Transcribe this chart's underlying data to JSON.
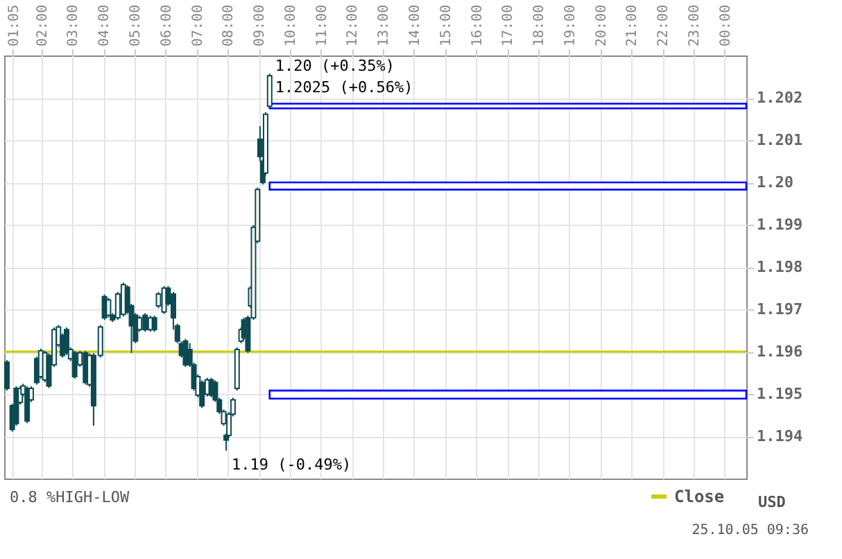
{
  "chart_data": {
    "type": "candlestick",
    "color": "#0d4a52",
    "ylabel": "USD",
    "xlim": [
      0.8,
      24.7
    ],
    "ylim": [
      1.193,
      1.203
    ],
    "xticks": [
      {
        "value": 1.0833,
        "label": "01:05"
      },
      {
        "value": 2,
        "label": "02:00"
      },
      {
        "value": 3,
        "label": "03:00"
      },
      {
        "value": 4,
        "label": "04:00"
      },
      {
        "value": 5,
        "label": "05:00"
      },
      {
        "value": 6,
        "label": "06:00"
      },
      {
        "value": 7,
        "label": "07:00"
      },
      {
        "value": 8,
        "label": "08:00"
      },
      {
        "value": 9,
        "label": "09:00"
      },
      {
        "value": 10,
        "label": "10:00"
      },
      {
        "value": 11,
        "label": "11:00"
      },
      {
        "value": 12,
        "label": "12:00"
      },
      {
        "value": 13,
        "label": "13:00"
      },
      {
        "value": 14,
        "label": "14:00"
      },
      {
        "value": 15,
        "label": "15:00"
      },
      {
        "value": 16,
        "label": "16:00"
      },
      {
        "value": 17,
        "label": "17:00"
      },
      {
        "value": 18,
        "label": "18:00"
      },
      {
        "value": 19,
        "label": "19:00"
      },
      {
        "value": 20,
        "label": "20:00"
      },
      {
        "value": 21,
        "label": "21:00"
      },
      {
        "value": 22,
        "label": "22:00"
      },
      {
        "value": 23,
        "label": "23:00"
      },
      {
        "value": 24,
        "label": "00:00"
      }
    ],
    "yticks": [
      1.194,
      1.195,
      1.196,
      1.197,
      1.198,
      1.199,
      {
        "value": 1.2,
        "label": "1.20"
      },
      1.201,
      1.202
    ],
    "grid": true,
    "legend": "bottom right",
    "x": [
      0.89,
      1.06,
      1.19,
      1.32,
      1.41,
      1.54,
      1.67,
      1.85,
      1.98,
      2.11,
      2.24,
      2.41,
      2.55,
      2.68,
      2.81,
      2.94,
      3.07,
      3.24,
      3.42,
      3.55,
      3.68,
      3.9,
      4.03,
      4.16,
      4.29,
      4.46,
      4.64,
      4.77,
      4.9,
      5.03,
      5.16,
      5.34,
      5.51,
      5.64,
      5.77,
      5.95,
      6.08,
      6.25,
      6.38,
      6.51,
      6.64,
      6.78,
      6.91,
      7.04,
      7.17,
      7.34,
      7.47,
      7.6,
      7.73,
      7.87,
      7.95,
      8.04,
      8.17,
      8.3,
      8.43,
      8.52,
      8.65,
      8.74,
      8.83,
      8.96,
      9.04,
      9.13,
      9.22,
      9.35
    ],
    "ohlc": [
      [
        1.19575,
        1.1958,
        1.19508,
        1.19513
      ],
      [
        1.19472,
        1.19477,
        1.19411,
        1.19416
      ],
      [
        1.19513,
        1.19518,
        1.19425,
        1.1943
      ],
      [
        1.1948,
        1.19518,
        1.19475,
        1.19513
      ],
      [
        1.19499,
        1.19524,
        1.19494,
        1.19519
      ],
      [
        1.19513,
        1.19518,
        1.19431,
        1.19436
      ],
      [
        1.19486,
        1.19518,
        1.19481,
        1.19513
      ],
      [
        1.19583,
        1.19588,
        1.19522,
        1.19527
      ],
      [
        1.19541,
        1.19607,
        1.19536,
        1.19602
      ],
      [
        1.19533,
        1.19602,
        1.19528,
        1.19597
      ],
      [
        1.19591,
        1.19596,
        1.19514,
        1.19519
      ],
      [
        1.19569,
        1.19657,
        1.19564,
        1.19652
      ],
      [
        1.19616,
        1.19663,
        1.19611,
        1.19658
      ],
      [
        1.19638,
        1.19643,
        1.19586,
        1.19591
      ],
      [
        1.19652,
        1.19657,
        1.19592,
        1.19597
      ],
      [
        1.19583,
        1.1961,
        1.19578,
        1.19605
      ],
      [
        1.19597,
        1.19602,
        1.19536,
        1.19541
      ],
      [
        1.19569,
        1.19602,
        1.19564,
        1.19597
      ],
      [
        1.19597,
        1.19602,
        1.19522,
        1.19527
      ],
      [
        1.19522,
        1.19596,
        1.19517,
        1.19591
      ],
      [
        1.19591,
        1.19596,
        1.19425,
        1.19472
      ],
      [
        1.19591,
        1.19663,
        1.19586,
        1.19658
      ],
      [
        1.1973,
        1.19735,
        1.19675,
        1.1968
      ],
      [
        1.19686,
        1.19727,
        1.19681,
        1.19722
      ],
      [
        1.19686,
        1.19691,
        1.1967,
        1.19675
      ],
      [
        1.1968,
        1.19741,
        1.19675,
        1.19736
      ],
      [
        1.19688,
        1.19763,
        1.19683,
        1.19758
      ],
      [
        1.19752,
        1.19757,
        1.19689,
        1.19694
      ],
      [
        1.19708,
        1.19713,
        1.19597,
        1.19661
      ],
      [
        1.19686,
        1.19691,
        1.1962,
        1.19625
      ],
      [
        1.19652,
        1.19685,
        1.19647,
        1.1968
      ],
      [
        1.19686,
        1.19691,
        1.19647,
        1.19652
      ],
      [
        1.19652,
        1.19685,
        1.19647,
        1.1968
      ],
      [
        1.1968,
        1.19685,
        1.19647,
        1.19652
      ],
      [
        1.19708,
        1.19741,
        1.19703,
        1.19736
      ],
      [
        1.19694,
        1.19755,
        1.19689,
        1.1975
      ],
      [
        1.1975,
        1.19755,
        1.19708,
        1.19713
      ],
      [
        1.19736,
        1.19741,
        1.19652,
        1.1968
      ],
      [
        1.19661,
        1.19666,
        1.1962,
        1.19625
      ],
      [
        1.19619,
        1.19624,
        1.19586,
        1.19591
      ],
      [
        1.19625,
        1.1963,
        1.19564,
        1.19569
      ],
      [
        1.19605,
        1.1962,
        1.19564,
        1.19569
      ],
      [
        1.19569,
        1.19574,
        1.19508,
        1.19513
      ],
      [
        1.19497,
        1.19546,
        1.19492,
        1.19541
      ],
      [
        1.19527,
        1.19532,
        1.19467,
        1.19472
      ],
      [
        1.19499,
        1.19538,
        1.19494,
        1.19533
      ],
      [
        1.19533,
        1.19538,
        1.19492,
        1.19497
      ],
      [
        1.19527,
        1.19532,
        1.19481,
        1.19486
      ],
      [
        1.19486,
        1.19491,
        1.19453,
        1.19458
      ],
      [
        1.1943,
        1.19463,
        1.19425,
        1.19458
      ],
      [
        1.19402,
        1.19407,
        1.19366,
        1.19391
      ],
      [
        1.19402,
        1.19457,
        1.19397,
        1.19452
      ],
      [
        1.19452,
        1.19491,
        1.19447,
        1.19486
      ],
      [
        1.19513,
        1.1961,
        1.19508,
        1.19605
      ],
      [
        1.19625,
        1.19657,
        1.1962,
        1.19652
      ],
      [
        1.19675,
        1.1968,
        1.19628,
        1.19633
      ],
      [
        1.1968,
        1.19685,
        1.19597,
        1.19602
      ],
      [
        1.19708,
        1.19755,
        1.19703,
        1.1975
      ],
      [
        1.1968,
        1.19899,
        1.19675,
        1.19894
      ],
      [
        1.19861,
        1.19988,
        1.19856,
        1.19983
      ],
      [
        1.20102,
        1.20133,
        1.2005,
        1.20061
      ],
      [
        1.2005,
        1.20055,
        1.19995,
        1.2
      ],
      [
        1.20022,
        1.20166,
        1.20017,
        1.20161
      ],
      [
        1.2018,
        1.20257,
        1.20175,
        1.20252
      ]
    ],
    "ref_lines": [
      {
        "axis": "y",
        "value": 1.196,
        "label": "Close",
        "color": "#cccc00"
      }
    ],
    "bands": [
      {
        "axis": "y",
        "from": 1.20175,
        "to": 1.20186,
        "color": "#0000ff"
      },
      {
        "axis": "y",
        "from": 1.19983,
        "to": 1.2,
        "color": "#0000ff"
      },
      {
        "axis": "y",
        "from": 1.19489,
        "to": 1.19508,
        "color": "#0000ff"
      }
    ],
    "annotations": [
      "1.20 (+0.35%)",
      {
        "text": "1.2025 (+0.56%)",
        "x": 9.35,
        "y": 1.2025
      },
      {
        "text": "1.19 (-0.49%)",
        "x": 7.95,
        "y": 1.1937
      },
      "0.8 %HIGH-LOW",
      "25.10.05 09:36"
    ]
  }
}
